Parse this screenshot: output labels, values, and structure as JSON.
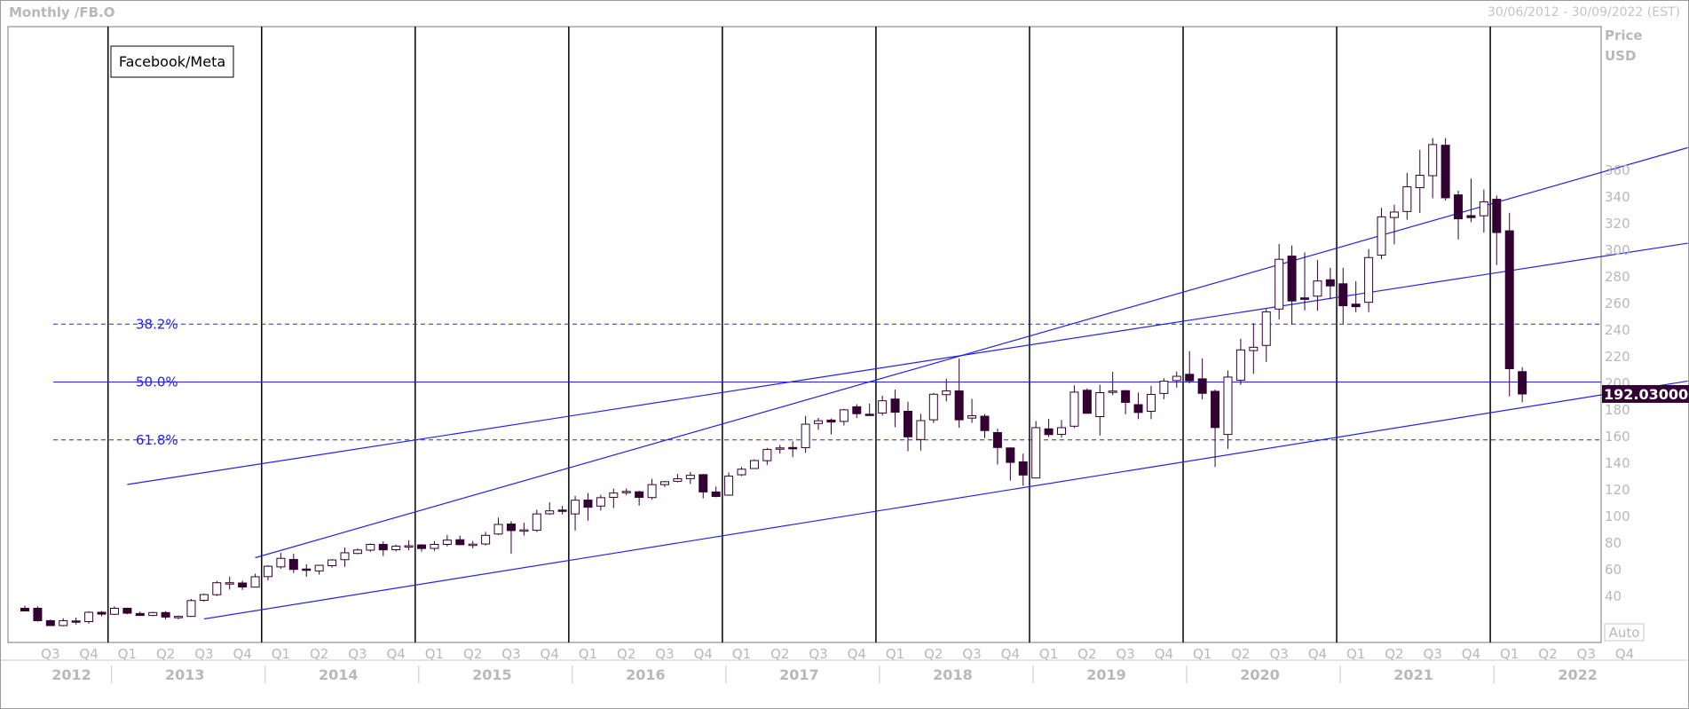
{
  "header": {
    "title": "Monthly /FB.O",
    "date_range": "30/06/2012 - 30/09/2022 (EST)"
  },
  "auto_button": "Auto",
  "colors": {
    "candle": "#330033",
    "line": "#2222ee",
    "vline": "#000000",
    "axis_text": "#b8b8b8",
    "price_bg": "#330033"
  },
  "chart_data": {
    "type": "candlestick",
    "legend": "Facebook/Meta",
    "ylabel": "Price",
    "yunit": "USD",
    "ylim": [
      20,
      375
    ],
    "yticks": [
      40,
      60,
      80,
      100,
      120,
      140,
      160,
      180,
      200,
      220,
      240,
      260,
      280,
      300,
      320,
      340,
      360
    ],
    "x_range": [
      "2012-06",
      "2022-09"
    ],
    "quarter_labels": [
      "Q3",
      "Q4",
      "Q1",
      "Q2",
      "Q3",
      "Q4",
      "Q1",
      "Q2",
      "Q3",
      "Q4",
      "Q1",
      "Q2",
      "Q3",
      "Q4",
      "Q1",
      "Q2",
      "Q3",
      "Q4",
      "Q1",
      "Q2",
      "Q3",
      "Q4",
      "Q1",
      "Q2",
      "Q3",
      "Q4",
      "Q1",
      "Q2",
      "Q3",
      "Q4",
      "Q1",
      "Q2",
      "Q3",
      "Q4",
      "Q1",
      "Q2",
      "Q3",
      "Q4",
      "Q1",
      "Q2",
      "Q3",
      "Q4"
    ],
    "years": [
      "2012",
      "2013",
      "2014",
      "2015",
      "2016",
      "2017",
      "2018",
      "2019",
      "2020",
      "2021",
      "2022"
    ],
    "last_price": "192.030000",
    "fibonacci": [
      {
        "label": "38.2%",
        "value": 244.5,
        "style": "dashed"
      },
      {
        "label": "50.0%",
        "value": 201.0,
        "style": "solid"
      },
      {
        "label": "61.8%",
        "value": 157.5,
        "style": "dashed"
      }
    ],
    "trendlines": [
      {
        "start": [
          "2013-08",
          23
        ],
        "end": [
          "2022-09",
          191
        ]
      },
      {
        "start": [
          "2013-12",
          69
        ],
        "end": [
          "2022-09",
          358
        ]
      },
      {
        "start": [
          "2013-02",
          124
        ],
        "end": [
          "2022-09",
          295
        ]
      }
    ],
    "candles": [
      {
        "d": "2012-06",
        "o": 31,
        "h": 33,
        "l": 29.5,
        "c": 29
      },
      {
        "d": "2012-07",
        "o": 31,
        "h": 32.5,
        "l": 21,
        "c": 21.7
      },
      {
        "d": "2012-08",
        "o": 21.7,
        "h": 22.5,
        "l": 18,
        "c": 18
      },
      {
        "d": "2012-09",
        "o": 18,
        "h": 23.5,
        "l": 17.5,
        "c": 21.7
      },
      {
        "d": "2012-10",
        "o": 21.5,
        "h": 24,
        "l": 18.8,
        "c": 21.1
      },
      {
        "d": "2012-11",
        "o": 21,
        "h": 28.8,
        "l": 19.5,
        "c": 28
      },
      {
        "d": "2012-12",
        "o": 28,
        "h": 28.9,
        "l": 25,
        "c": 26.6
      },
      {
        "d": "2013-01",
        "o": 26.5,
        "h": 32.5,
        "l": 26,
        "c": 31
      },
      {
        "d": "2013-02",
        "o": 31,
        "h": 31.5,
        "l": 26.5,
        "c": 27.3
      },
      {
        "d": "2013-03",
        "o": 27.1,
        "h": 28.5,
        "l": 25.3,
        "c": 25.6
      },
      {
        "d": "2013-04",
        "o": 25.6,
        "h": 28.3,
        "l": 25.1,
        "c": 27.8
      },
      {
        "d": "2013-05",
        "o": 27.8,
        "h": 28.8,
        "l": 22.7,
        "c": 24.4
      },
      {
        "d": "2013-06",
        "o": 24.4,
        "h": 25.5,
        "l": 22.7,
        "c": 24.9
      },
      {
        "d": "2013-07",
        "o": 24.9,
        "h": 38,
        "l": 24.5,
        "c": 36.8
      },
      {
        "d": "2013-08",
        "o": 37,
        "h": 42,
        "l": 36,
        "c": 41.3
      },
      {
        "d": "2013-09",
        "o": 41.2,
        "h": 51.6,
        "l": 40.2,
        "c": 50.2
      },
      {
        "d": "2013-10",
        "o": 50.2,
        "h": 54.8,
        "l": 45,
        "c": 50.2
      },
      {
        "d": "2013-11",
        "o": 50,
        "h": 51.7,
        "l": 44.8,
        "c": 47
      },
      {
        "d": "2013-12",
        "o": 46.9,
        "h": 57,
        "l": 46.6,
        "c": 54.7
      },
      {
        "d": "2014-01",
        "o": 54.8,
        "h": 63.4,
        "l": 51.9,
        "c": 62.6
      },
      {
        "d": "2014-02",
        "o": 62.1,
        "h": 72.6,
        "l": 60.7,
        "c": 68.5
      },
      {
        "d": "2014-03",
        "o": 67.7,
        "h": 72,
        "l": 57.5,
        "c": 60.2
      },
      {
        "d": "2014-04",
        "o": 60.5,
        "h": 64,
        "l": 54.7,
        "c": 59.8
      },
      {
        "d": "2014-05",
        "o": 59.1,
        "h": 63.7,
        "l": 56.3,
        "c": 63.3
      },
      {
        "d": "2014-06",
        "o": 63,
        "h": 68,
        "l": 61.6,
        "c": 67.3
      },
      {
        "d": "2014-07",
        "o": 67.5,
        "h": 76.7,
        "l": 62.2,
        "c": 72.7
      },
      {
        "d": "2014-08",
        "o": 72.2,
        "h": 75.9,
        "l": 71.6,
        "c": 74.8
      },
      {
        "d": "2014-09",
        "o": 74.7,
        "h": 79.7,
        "l": 73.5,
        "c": 79
      },
      {
        "d": "2014-10",
        "o": 79,
        "h": 81.2,
        "l": 70.3,
        "c": 74.9
      },
      {
        "d": "2014-11",
        "o": 75,
        "h": 78.9,
        "l": 73.7,
        "c": 77.7
      },
      {
        "d": "2014-12",
        "o": 77.7,
        "h": 82.2,
        "l": 74.6,
        "c": 78
      },
      {
        "d": "2015-01",
        "o": 78.6,
        "h": 79.2,
        "l": 73.5,
        "c": 75.9
      },
      {
        "d": "2015-02",
        "o": 76,
        "h": 81.4,
        "l": 74.2,
        "c": 79
      },
      {
        "d": "2015-03",
        "o": 79,
        "h": 86.1,
        "l": 77.5,
        "c": 82.2
      },
      {
        "d": "2015-04",
        "o": 82.5,
        "h": 85.6,
        "l": 78.4,
        "c": 78.8
      },
      {
        "d": "2015-05",
        "o": 79,
        "h": 81.6,
        "l": 76.1,
        "c": 79.2
      },
      {
        "d": "2015-06",
        "o": 79.3,
        "h": 88.4,
        "l": 78.2,
        "c": 85.8
      },
      {
        "d": "2015-07",
        "o": 86.8,
        "h": 99.2,
        "l": 86,
        "c": 94
      },
      {
        "d": "2015-08",
        "o": 94.3,
        "h": 96.5,
        "l": 72,
        "c": 89.4
      },
      {
        "d": "2015-09",
        "o": 89.9,
        "h": 95.3,
        "l": 85.7,
        "c": 89.9
      },
      {
        "d": "2015-10",
        "o": 89.6,
        "h": 105.1,
        "l": 88.4,
        "c": 101.9
      },
      {
        "d": "2015-11",
        "o": 102,
        "h": 110.6,
        "l": 101.2,
        "c": 104.2
      },
      {
        "d": "2015-12",
        "o": 104.8,
        "h": 107.9,
        "l": 101.5,
        "c": 104.7
      },
      {
        "d": "2016-01",
        "o": 101.9,
        "h": 115.4,
        "l": 89.4,
        "c": 112.2
      },
      {
        "d": "2016-02",
        "o": 112.3,
        "h": 117.6,
        "l": 96.8,
        "c": 106.9
      },
      {
        "d": "2016-03",
        "o": 107.8,
        "h": 116.3,
        "l": 104.4,
        "c": 114.1
      },
      {
        "d": "2016-04",
        "o": 114.3,
        "h": 120.8,
        "l": 106.3,
        "c": 117.6
      },
      {
        "d": "2016-05",
        "o": 117.8,
        "h": 121.1,
        "l": 116,
        "c": 118.8
      },
      {
        "d": "2016-06",
        "o": 118.5,
        "h": 119.4,
        "l": 108.2,
        "c": 114.3
      },
      {
        "d": "2016-07",
        "o": 114.2,
        "h": 128.3,
        "l": 112.6,
        "c": 123.9
      },
      {
        "d": "2016-08",
        "o": 123.9,
        "h": 126.7,
        "l": 122.1,
        "c": 126.1
      },
      {
        "d": "2016-09",
        "o": 126.4,
        "h": 131.9,
        "l": 125.6,
        "c": 128.3
      },
      {
        "d": "2016-10",
        "o": 128.4,
        "h": 133.5,
        "l": 124.5,
        "c": 130.9
      },
      {
        "d": "2016-11",
        "o": 131.4,
        "h": 131.9,
        "l": 113.6,
        "c": 118.4
      },
      {
        "d": "2016-12",
        "o": 118.4,
        "h": 122.5,
        "l": 114.4,
        "c": 115
      },
      {
        "d": "2017-01",
        "o": 116,
        "h": 133.1,
        "l": 115.5,
        "c": 130.3
      },
      {
        "d": "2017-02",
        "o": 131.3,
        "h": 137.2,
        "l": 130.3,
        "c": 135.5
      },
      {
        "d": "2017-03",
        "o": 136,
        "h": 142.9,
        "l": 136.7,
        "c": 142
      },
      {
        "d": "2017-04",
        "o": 141.9,
        "h": 151.5,
        "l": 138.8,
        "c": 150.3
      },
      {
        "d": "2017-05",
        "o": 151.5,
        "h": 153.7,
        "l": 147.3,
        "c": 151.5
      },
      {
        "d": "2017-06",
        "o": 151.8,
        "h": 156.5,
        "l": 144.6,
        "c": 151
      },
      {
        "d": "2017-07",
        "o": 151.7,
        "h": 175.5,
        "l": 147.8,
        "c": 169.3
      },
      {
        "d": "2017-08",
        "o": 169.8,
        "h": 174,
        "l": 165,
        "c": 171.9
      },
      {
        "d": "2017-09",
        "o": 172.4,
        "h": 173.6,
        "l": 161.6,
        "c": 170.9
      },
      {
        "d": "2017-10",
        "o": 171.4,
        "h": 180.8,
        "l": 168.3,
        "c": 180.1
      },
      {
        "d": "2017-11",
        "o": 182.4,
        "h": 184.3,
        "l": 174,
        "c": 177.2
      },
      {
        "d": "2017-12",
        "o": 176.8,
        "h": 184.8,
        "l": 175.6,
        "c": 176.5
      },
      {
        "d": "2018-01",
        "o": 177.7,
        "h": 190.7,
        "l": 175.8,
        "c": 186.9
      },
      {
        "d": "2018-02",
        "o": 188.2,
        "h": 195.3,
        "l": 167.1,
        "c": 178.3
      },
      {
        "d": "2018-03",
        "o": 179,
        "h": 186.1,
        "l": 149,
        "c": 159.8
      },
      {
        "d": "2018-04",
        "o": 157.8,
        "h": 177.1,
        "l": 149.5,
        "c": 172
      },
      {
        "d": "2018-05",
        "o": 172.6,
        "h": 192.7,
        "l": 170.2,
        "c": 191.8
      },
      {
        "d": "2018-06",
        "o": 191.5,
        "h": 203.6,
        "l": 186.4,
        "c": 194.3
      },
      {
        "d": "2018-07",
        "o": 194.3,
        "h": 218.6,
        "l": 166.6,
        "c": 172.6
      },
      {
        "d": "2018-08",
        "o": 173.9,
        "h": 188.3,
        "l": 170.3,
        "c": 175.7
      },
      {
        "d": "2018-09",
        "o": 175.3,
        "h": 176.8,
        "l": 158.9,
        "c": 164.5
      },
      {
        "d": "2018-10",
        "o": 163,
        "h": 165.9,
        "l": 139.0,
        "c": 151.8
      },
      {
        "d": "2018-11",
        "o": 151.5,
        "h": 151.8,
        "l": 126.9,
        "c": 140.6
      },
      {
        "d": "2018-12",
        "o": 141,
        "h": 147.2,
        "l": 123.0,
        "c": 131.1
      },
      {
        "d": "2019-01",
        "o": 128.9,
        "h": 171.7,
        "l": 128.6,
        "c": 166.7
      },
      {
        "d": "2019-02",
        "o": 165.8,
        "h": 173.3,
        "l": 159.6,
        "c": 161.5
      },
      {
        "d": "2019-03",
        "o": 161.7,
        "h": 172.5,
        "l": 159.3,
        "c": 166.7
      },
      {
        "d": "2019-04",
        "o": 167.8,
        "h": 198.5,
        "l": 166.5,
        "c": 193.4
      },
      {
        "d": "2019-05",
        "o": 194.8,
        "h": 196.2,
        "l": 177.2,
        "c": 177.5
      },
      {
        "d": "2019-06",
        "o": 175,
        "h": 198.9,
        "l": 160.8,
        "c": 193
      },
      {
        "d": "2019-07",
        "o": 194,
        "h": 208.7,
        "l": 191.2,
        "c": 194.2
      },
      {
        "d": "2019-08",
        "o": 194.5,
        "h": 194.9,
        "l": 176.7,
        "c": 185.7
      },
      {
        "d": "2019-09",
        "o": 184,
        "h": 193.1,
        "l": 173.1,
        "c": 178.1
      },
      {
        "d": "2019-10",
        "o": 179,
        "h": 198.1,
        "l": 173.1,
        "c": 191.7
      },
      {
        "d": "2019-11",
        "o": 192.4,
        "h": 203.8,
        "l": 188.1,
        "c": 201.6
      },
      {
        "d": "2019-12",
        "o": 202.1,
        "h": 208.9,
        "l": 196.8,
        "c": 205.3
      },
      {
        "d": "2020-01",
        "o": 206.8,
        "h": 224.2,
        "l": 199.9,
        "c": 201.9
      },
      {
        "d": "2020-02",
        "o": 203.4,
        "h": 218.8,
        "l": 188.0,
        "c": 192.5
      },
      {
        "d": "2020-03",
        "o": 194,
        "h": 195.3,
        "l": 137.1,
        "c": 166.8
      },
      {
        "d": "2020-04",
        "o": 161.6,
        "h": 209.7,
        "l": 150.8,
        "c": 204.7
      },
      {
        "d": "2020-05",
        "o": 202.3,
        "h": 233.5,
        "l": 198.8,
        "c": 225.1
      },
      {
        "d": "2020-06",
        "o": 224.6,
        "h": 245.2,
        "l": 207.1,
        "c": 227.1
      },
      {
        "d": "2020-07",
        "o": 228.5,
        "h": 255.9,
        "l": 216.1,
        "c": 253.7
      },
      {
        "d": "2020-08",
        "o": 255.8,
        "h": 304.7,
        "l": 248.1,
        "c": 293.2
      },
      {
        "d": "2020-09",
        "o": 295.6,
        "h": 303.6,
        "l": 244.1,
        "c": 261.9
      },
      {
        "d": "2020-10",
        "o": 264.2,
        "h": 298.3,
        "l": 254.8,
        "c": 263.1
      },
      {
        "d": "2020-11",
        "o": 265.5,
        "h": 292.7,
        "l": 254.6,
        "c": 276.9
      },
      {
        "d": "2020-12",
        "o": 277.8,
        "h": 286.8,
        "l": 263.3,
        "c": 273.2
      },
      {
        "d": "2021-01",
        "o": 274.8,
        "h": 286.8,
        "l": 244.6,
        "c": 258.3
      },
      {
        "d": "2021-02",
        "o": 259.5,
        "h": 276.8,
        "l": 253.5,
        "c": 257.6
      },
      {
        "d": "2021-03",
        "o": 260.9,
        "h": 300.9,
        "l": 253.5,
        "c": 294.5
      },
      {
        "d": "2021-04",
        "o": 296.3,
        "h": 331.8,
        "l": 293.4,
        "c": 325.1
      },
      {
        "d": "2021-05",
        "o": 324.6,
        "h": 334.1,
        "l": 304.4,
        "c": 328.7
      },
      {
        "d": "2021-06",
        "o": 329.1,
        "h": 358.1,
        "l": 323,
        "c": 347.7
      },
      {
        "d": "2021-07",
        "o": 347,
        "h": 375.4,
        "l": 328,
        "c": 356.3
      },
      {
        "d": "2021-08",
        "o": 356,
        "h": 384.3,
        "l": 339,
        "c": 379.4
      },
      {
        "d": "2021-09",
        "o": 378.9,
        "h": 384.3,
        "l": 337.4,
        "c": 339.4
      },
      {
        "d": "2021-10",
        "o": 341.6,
        "h": 344.7,
        "l": 308.1,
        "c": 323.6
      },
      {
        "d": "2021-11",
        "o": 326,
        "h": 353.8,
        "l": 321.1,
        "c": 324.5
      },
      {
        "d": "2021-12",
        "o": 325.9,
        "h": 345.6,
        "l": 313.3,
        "c": 336.4
      },
      {
        "d": "2022-01",
        "o": 338.3,
        "h": 341.1,
        "l": 288.8,
        "c": 313.3
      },
      {
        "d": "2022-02",
        "o": 314.6,
        "h": 328.2,
        "l": 190.2,
        "c": 211
      },
      {
        "d": "2022-03",
        "o": 208.8,
        "h": 212.2,
        "l": 185.8,
        "c": 192.0
      }
    ]
  }
}
